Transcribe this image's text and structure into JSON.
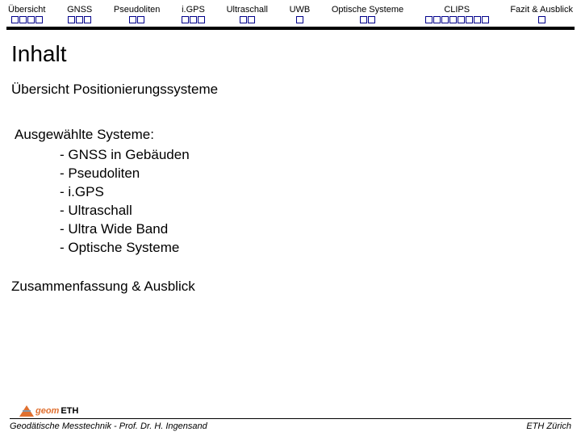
{
  "nav": [
    {
      "label": "Übersicht",
      "count": 4
    },
    {
      "label": "GNSS",
      "count": 3
    },
    {
      "label": "Pseudoliten",
      "count": 2
    },
    {
      "label": "i.GPS",
      "count": 3
    },
    {
      "label": "Ultraschall",
      "count": 2
    },
    {
      "label": "UWB",
      "count": 1
    },
    {
      "label": "Optische Systeme",
      "count": 2
    },
    {
      "label": "CLIPS",
      "count": 8
    },
    {
      "label": "Fazit & Ausblick",
      "count": 1
    }
  ],
  "title": "Inhalt",
  "section1": "Übersicht Positionierungssysteme",
  "section2_head": "Ausgewählte Systeme:",
  "bullets": [
    "- GNSS in Gebäuden",
    "- Pseudoliten",
    "- i.GPS",
    "- Ultraschall",
    "- Ultra Wide Band",
    "- Optische Systeme"
  ],
  "section3": "Zusammenfassung & Ausblick",
  "logo": {
    "a": "geom",
    "b": "ETH"
  },
  "footer_left": "Geodätische Messtechnik - Prof. Dr. H. Ingensand",
  "footer_right": "ETH Zürich"
}
